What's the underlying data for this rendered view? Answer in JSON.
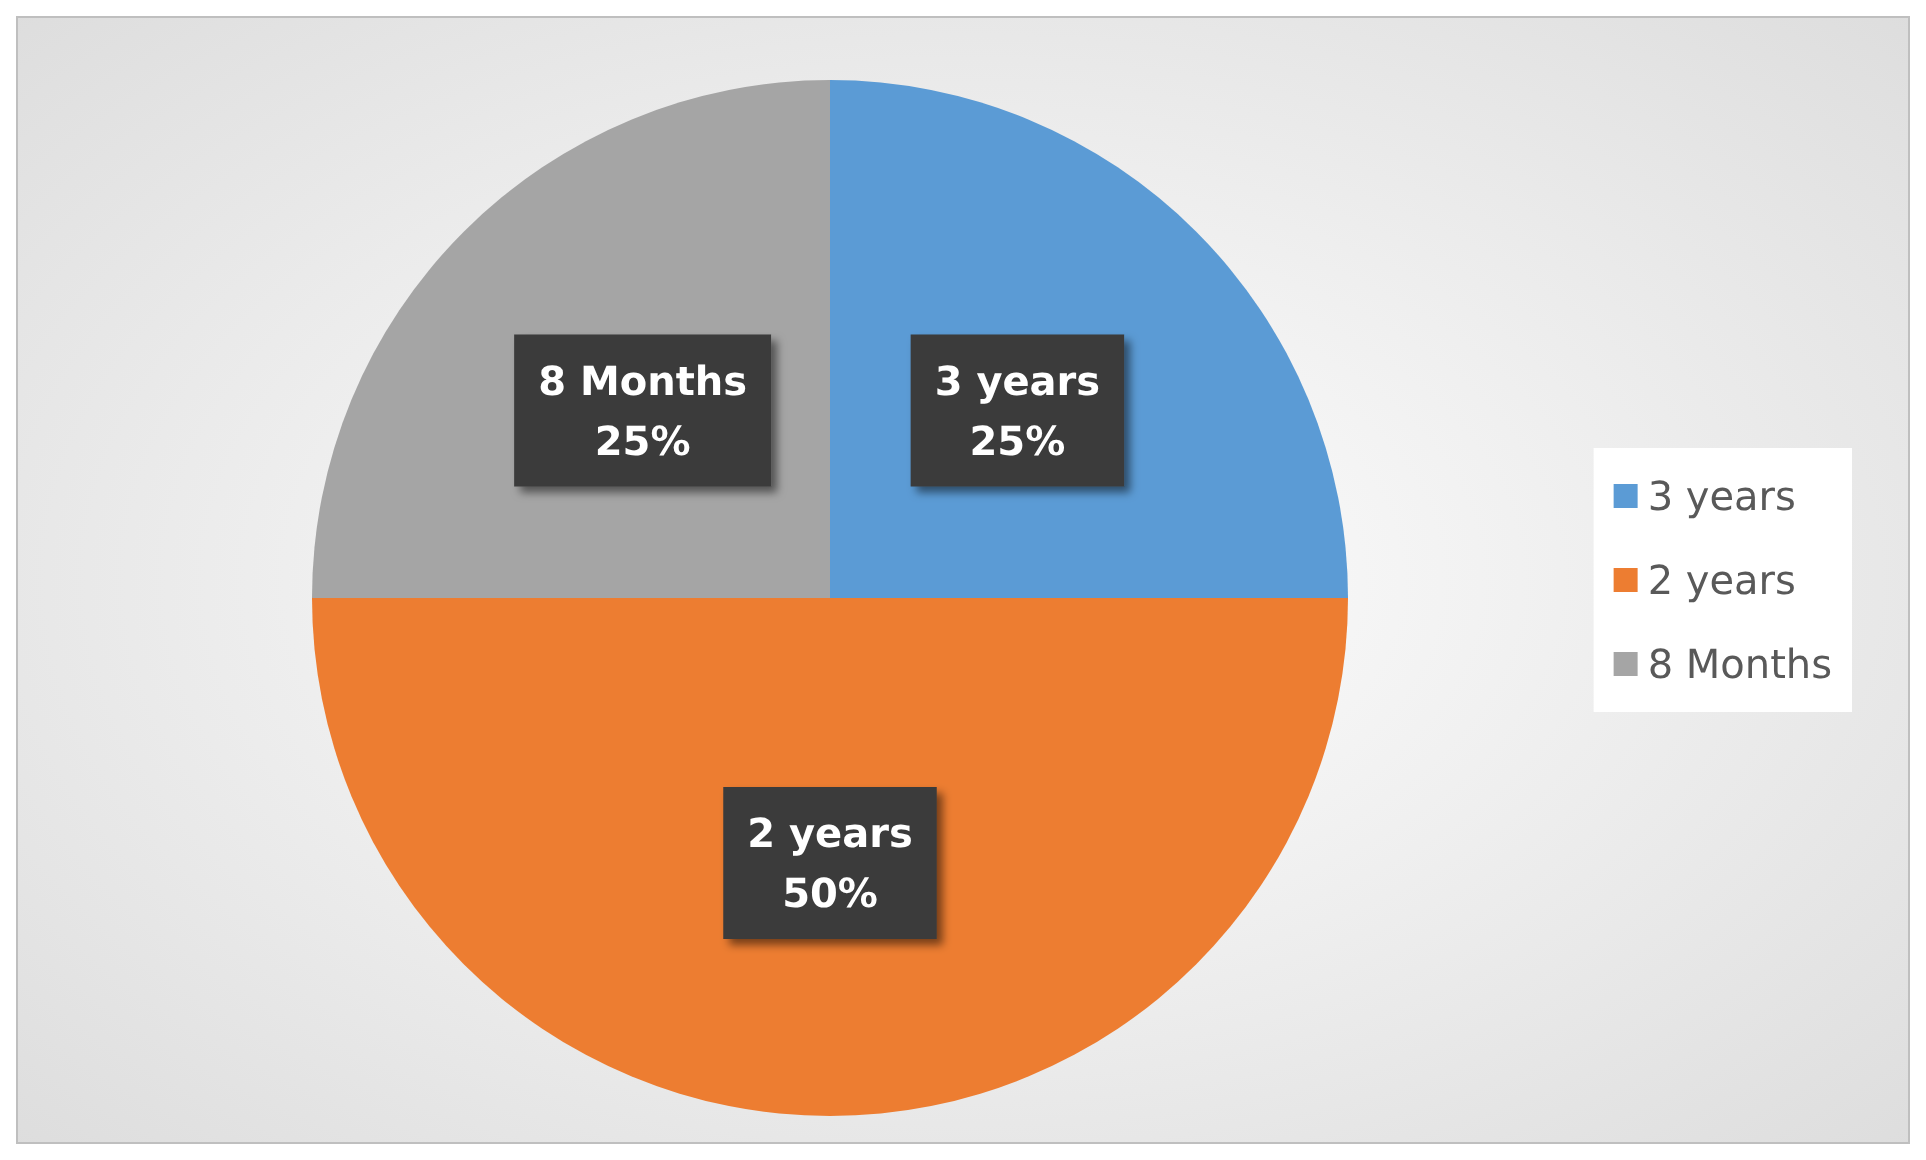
{
  "chart_data": {
    "type": "pie",
    "categories": [
      "3 years",
      "2 years",
      "8 Months"
    ],
    "values": [
      25,
      50,
      25
    ],
    "colors": [
      "#5b9bd5",
      "#ed7d31",
      "#a5a5a5"
    ],
    "value_labels": [
      "25%",
      "50%",
      "25%"
    ],
    "legend": "right"
  }
}
